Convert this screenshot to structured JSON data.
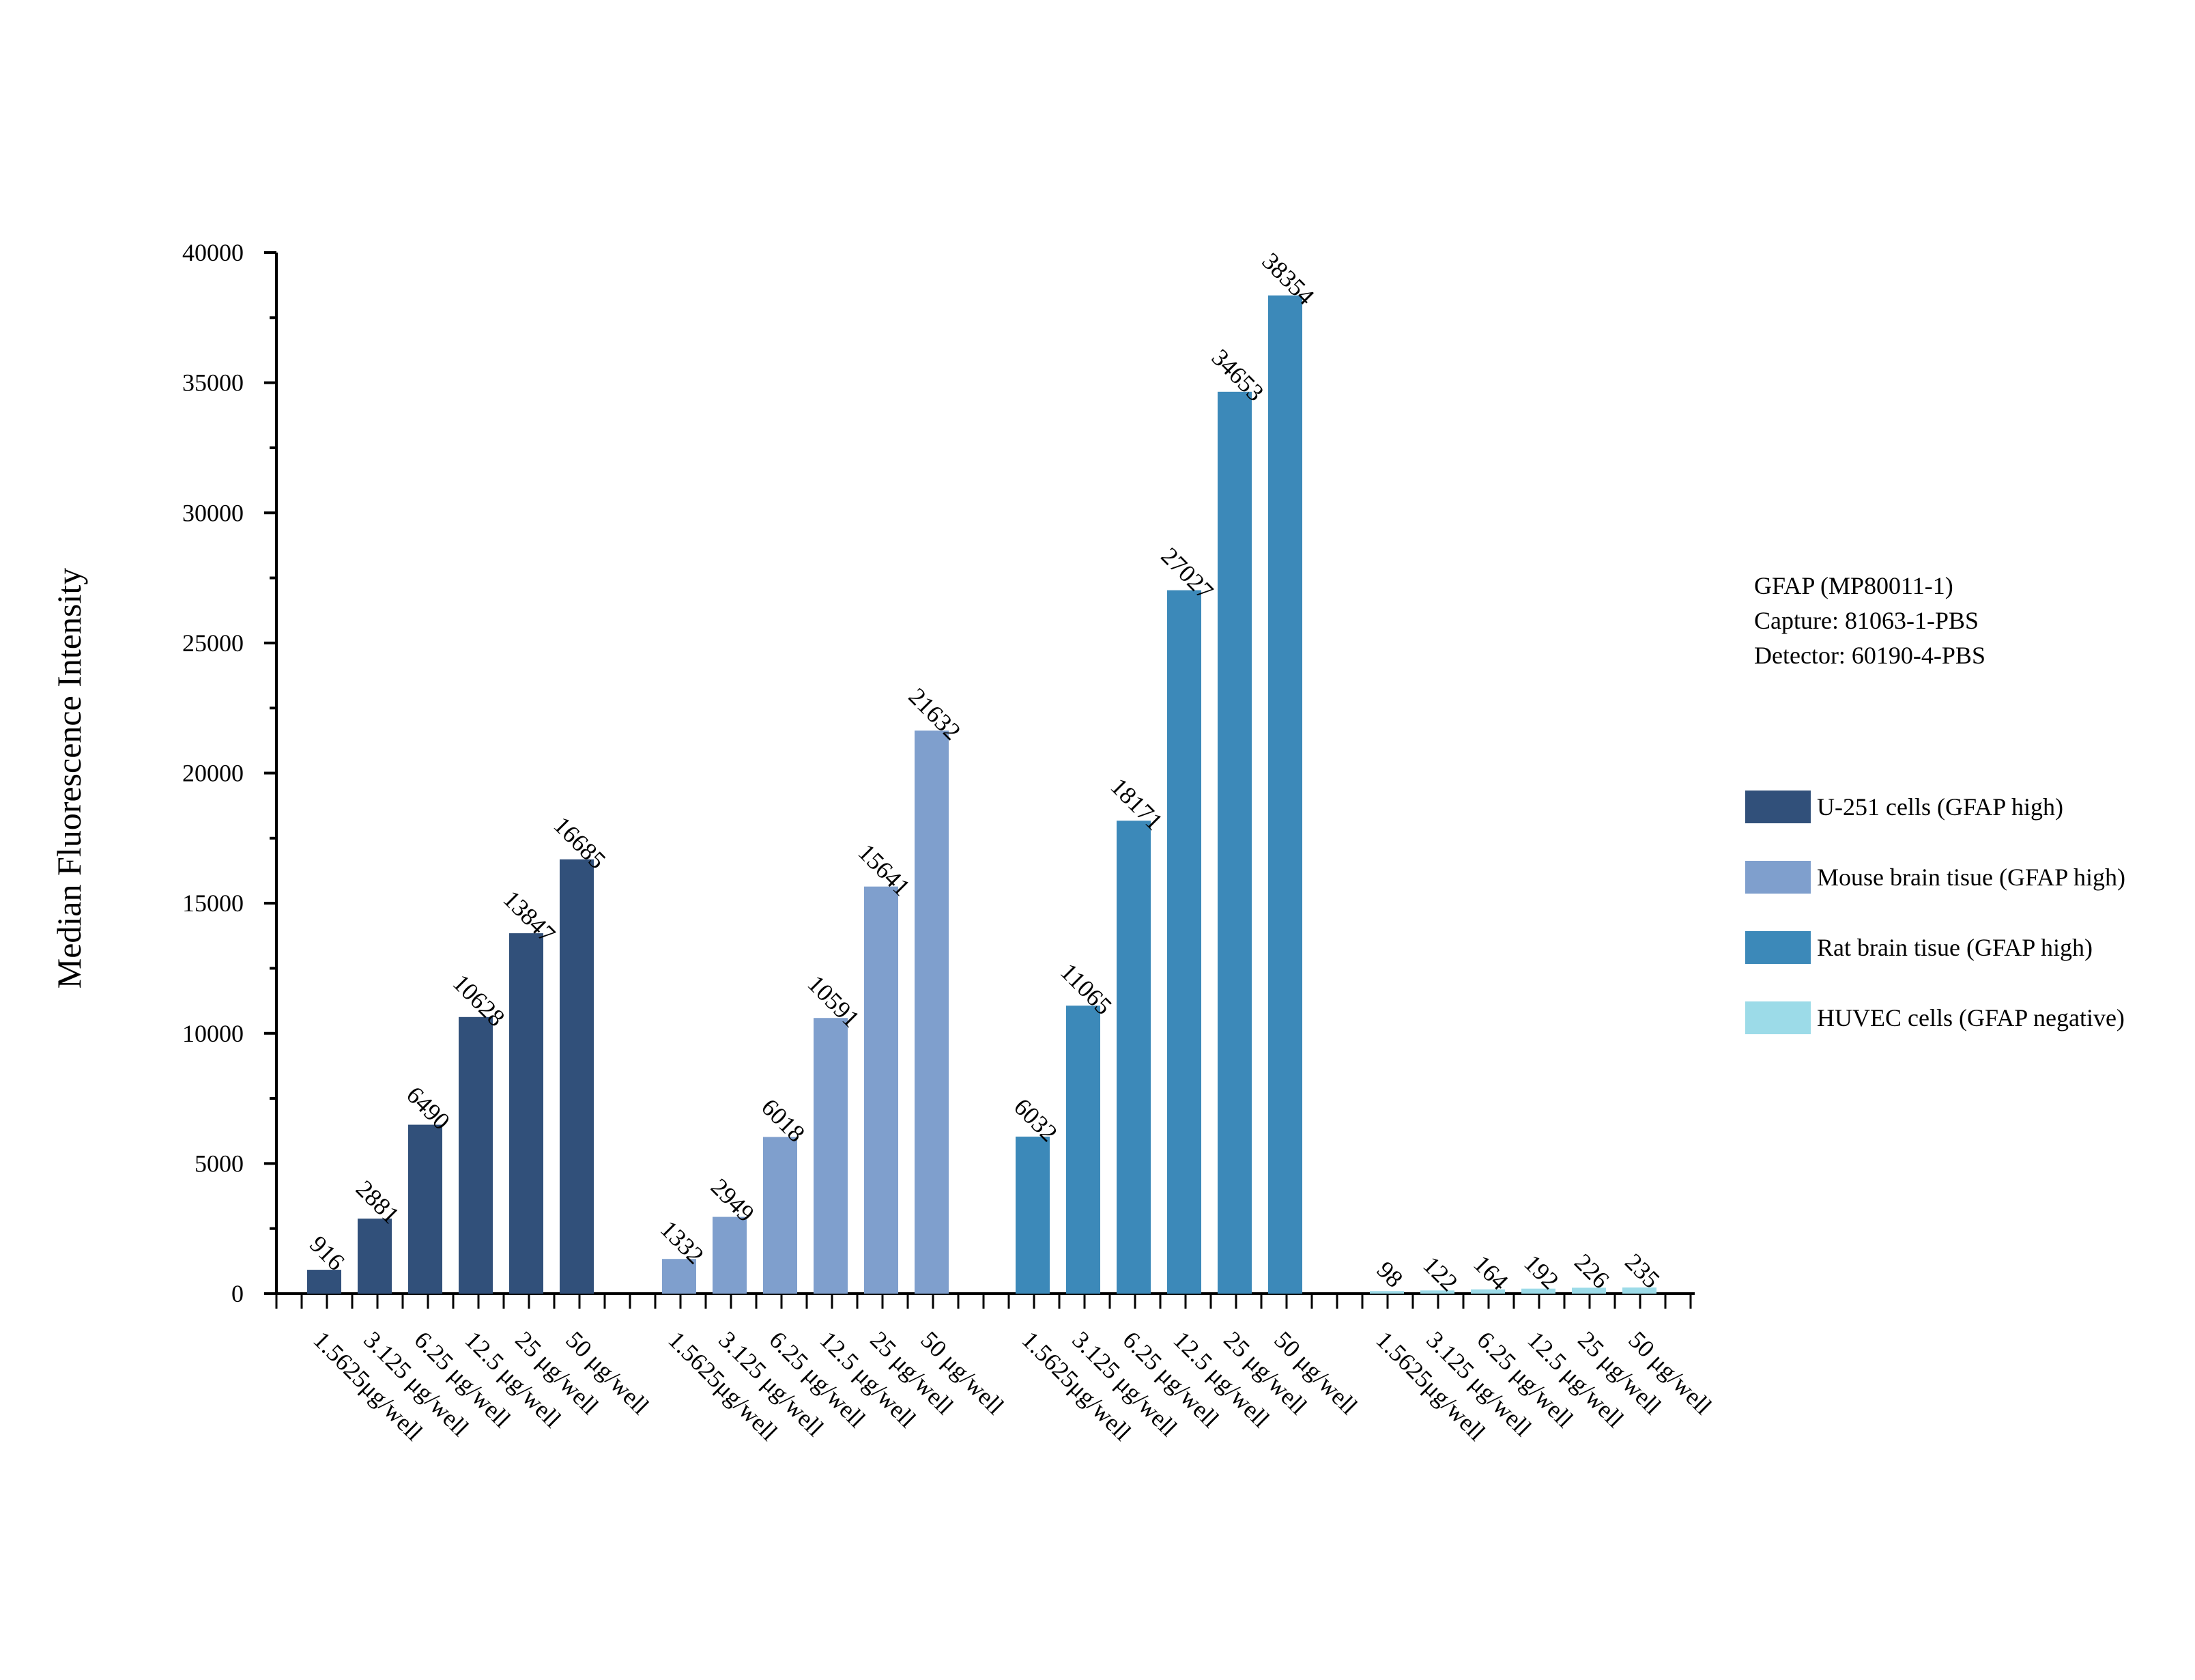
{
  "chart_data": {
    "type": "bar",
    "ylabel": "Median Fluorescence Intensity",
    "ylim": [
      0,
      40000
    ],
    "yticks": [
      0,
      5000,
      10000,
      15000,
      20000,
      25000,
      30000,
      35000,
      40000
    ],
    "categories": [
      "1.5625μg/well",
      "3.125 μg/well",
      "6.25 μg/well",
      "12.5 μg/well",
      "25 μg/well",
      "50 μg/well"
    ],
    "series": [
      {
        "name": "U-251 cells (GFAP high)",
        "color": "#31507a",
        "values": [
          916,
          2881,
          6490,
          10628,
          13847,
          16685
        ]
      },
      {
        "name": "Mouse brain tisue (GFAP high)",
        "color": "#7f9fcd",
        "values": [
          1332,
          2949,
          6018,
          10591,
          15641,
          21632
        ]
      },
      {
        "name": "Rat brain tisue (GFAP high)",
        "color": "#3c89b9",
        "values": [
          6032,
          11065,
          18171,
          27027,
          34653,
          38354
        ]
      },
      {
        "name": "HUVEC cells (GFAP negative)",
        "color": "#9cdbe8",
        "values": [
          98,
          122,
          164,
          192,
          226,
          235
        ]
      }
    ],
    "info": [
      "GFAP (MP80011-1)",
      "Capture: 81063-1-PBS",
      "Detector: 60190-4-PBS"
    ],
    "legend_position": "right"
  }
}
